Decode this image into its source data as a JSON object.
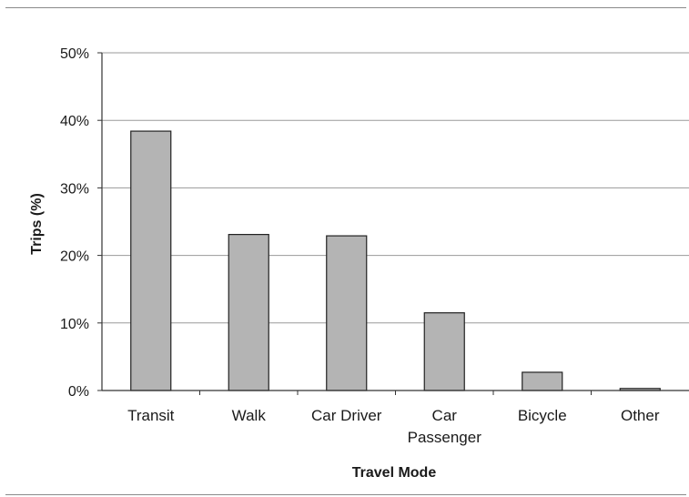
{
  "chart_data": {
    "type": "bar",
    "title": "",
    "xlabel": "Travel Mode",
    "ylabel": "Trips (%)",
    "categories": [
      "Transit",
      "Walk",
      "Car Driver",
      "Car Passenger",
      "Bicycle",
      "Other"
    ],
    "category_lines": [
      [
        "Transit"
      ],
      [
        "Walk"
      ],
      [
        "Car Driver"
      ],
      [
        "Car",
        "Passenger"
      ],
      [
        "Bicycle"
      ],
      [
        "Other"
      ]
    ],
    "values": [
      38.4,
      23.1,
      22.9,
      11.5,
      2.7,
      0.3
    ],
    "ylim": [
      0,
      50
    ],
    "yticks": [
      0,
      10,
      20,
      30,
      40,
      50
    ],
    "ytick_labels": [
      "0%",
      "10%",
      "20%",
      "30%",
      "40%",
      "50%"
    ],
    "grid": true,
    "legend": "none",
    "colors": {
      "bar_fill": "#b4b4b4",
      "bar_stroke": "#222222",
      "grid": "#9a9a9a",
      "axis": "#333333"
    }
  }
}
